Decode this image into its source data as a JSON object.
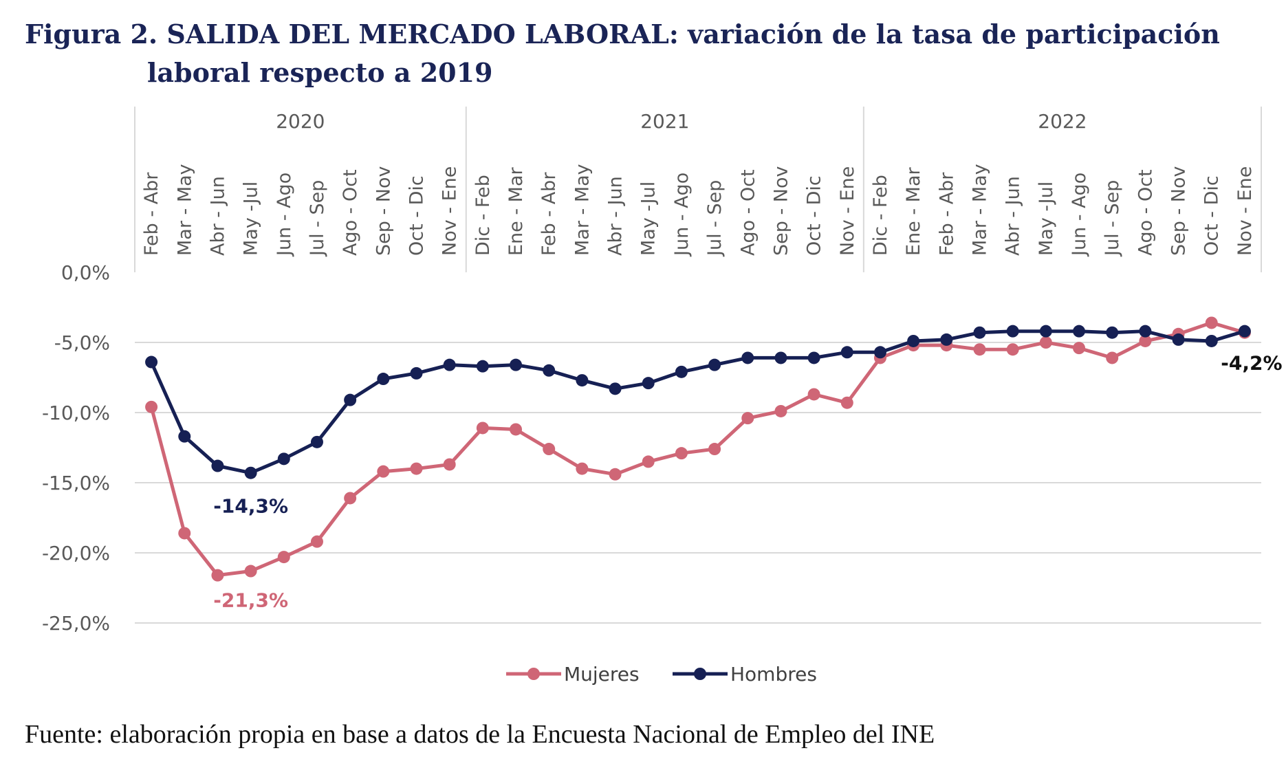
{
  "title_line1": "Figura 2. SALIDA DEL MERCADO LABORAL: variación de la tasa de participación",
  "title_line2": "laboral respecto a 2019",
  "source_label": "Fuente:",
  "source_text": "elaboración propia en base a datos de la Encuesta Nacional de Empleo del INE",
  "chart_data": {
    "type": "line",
    "title": "",
    "xlabel": "",
    "ylabel": "",
    "ylim": [
      -25,
      0
    ],
    "yticks": [
      0,
      -5,
      -10,
      -15,
      -20,
      -25
    ],
    "ytick_labels": [
      "0,0%",
      "-5,0%",
      "-10,0%",
      "-15,0%",
      "-20,0%",
      "-25,0%"
    ],
    "grid": true,
    "legend_position": "bottom",
    "year_groups": [
      {
        "label": "2020",
        "count": 10
      },
      {
        "label": "2021",
        "count": 12
      },
      {
        "label": "2022",
        "count": 12
      }
    ],
    "categories": [
      "Feb - Abr",
      "Mar - May",
      "Abr - Jun",
      "May -Jul",
      "Jun - Ago",
      "Jul - Sep",
      "Ago - Oct",
      "Sep - Nov",
      "Oct - Dic",
      "Nov - Ene",
      "Dic - Feb",
      "Ene - Mar",
      "Feb - Abr",
      "Mar - May",
      "Abr - Jun",
      "May -Jul",
      "Jun - Ago",
      "Jul - Sep",
      "Ago - Oct",
      "Sep - Nov",
      "Oct - Dic",
      "Nov - Ene",
      "Dic - Feb",
      "Ene - Mar",
      "Feb - Abr",
      "Mar - May",
      "Abr - Jun",
      "May -Jul",
      "Jun - Ago",
      "Jul - Sep",
      "Ago - Oct",
      "Sep - Nov",
      "Oct - Dic",
      "Nov - Ene"
    ],
    "series": [
      {
        "name": "Mujeres",
        "color": "#cf6676",
        "values": [
          -9.6,
          -18.6,
          -21.6,
          -21.3,
          -20.3,
          -19.2,
          -16.1,
          -14.2,
          -14.0,
          -13.7,
          -11.1,
          -11.2,
          -12.6,
          -14.0,
          -14.4,
          -13.5,
          -12.9,
          -12.6,
          -10.4,
          -9.9,
          -8.7,
          -9.3,
          -6.1,
          -5.2,
          -5.2,
          -5.5,
          -5.5,
          -5.0,
          -5.4,
          -6.1,
          -4.9,
          -4.4,
          -3.6,
          -4.3
        ]
      },
      {
        "name": "Hombres",
        "color": "#162054",
        "values": [
          -6.4,
          -11.7,
          -13.8,
          -14.3,
          -13.3,
          -12.1,
          -9.1,
          -7.6,
          -7.2,
          -6.6,
          -6.7,
          -6.6,
          -7.0,
          -7.7,
          -8.3,
          -7.9,
          -7.1,
          -6.6,
          -6.1,
          -6.1,
          -6.1,
          -5.7,
          -5.7,
          -4.9,
          -4.8,
          -4.3,
          -4.2,
          -4.2,
          -4.2,
          -4.3,
          -4.2,
          -4.8,
          -4.9,
          -4.2
        ]
      }
    ],
    "annotations": [
      {
        "text": "-14,3%",
        "series": "Hombres",
        "index": 3,
        "color": "#162054"
      },
      {
        "text": "-21,3%",
        "series": "Mujeres",
        "index": 3,
        "color": "#cf6676"
      },
      {
        "text": "-4,2%",
        "series": "Hombres",
        "index": 33,
        "color": "#111111"
      }
    ]
  }
}
